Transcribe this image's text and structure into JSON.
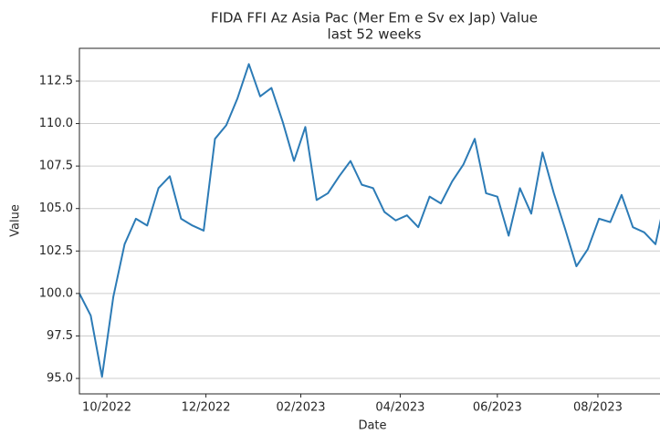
{
  "chart_data": {
    "type": "line",
    "title": "FIDA FFI Az Asia Pac (Mer Em e Sv ex Jap) Value",
    "subtitle": "last 52 weeks",
    "x_label": "Date",
    "y_label": "Value",
    "x": [
      0,
      1,
      2,
      3,
      4,
      5,
      6,
      7,
      8,
      9,
      10,
      11,
      12,
      13,
      14,
      15,
      16,
      17,
      18,
      19,
      20,
      21,
      22,
      23,
      24,
      25,
      26,
      27,
      28,
      29,
      30,
      31,
      32,
      33,
      34,
      35,
      36,
      37,
      38,
      39,
      40,
      41,
      42,
      43,
      44,
      45,
      46,
      47,
      48,
      49,
      50,
      51,
      52
    ],
    "series": [
      {
        "name": "Value",
        "color": "#2c7bb6",
        "values": [
          100.0,
          98.7,
          95.1,
          99.8,
          102.9,
          104.4,
          104.0,
          106.2,
          106.9,
          104.4,
          104.0,
          103.7,
          109.1,
          109.9,
          111.5,
          113.5,
          111.6,
          112.1,
          110.1,
          107.8,
          109.8,
          105.5,
          105.9,
          106.9,
          107.8,
          106.4,
          106.2,
          104.8,
          104.3,
          104.6,
          103.9,
          105.7,
          105.3,
          106.6,
          107.6,
          109.1,
          105.9,
          105.7,
          103.4,
          106.2,
          104.7,
          108.3,
          105.9,
          103.8,
          101.6,
          102.6,
          104.4,
          104.2,
          105.8,
          103.9,
          103.6,
          102.9,
          106.0
        ]
      }
    ],
    "xlim": [
      0,
      51.4
    ],
    "xticks": [
      {
        "value": 2.43,
        "label": "10/2022"
      },
      {
        "value": 11.2,
        "label": "12/2022"
      },
      {
        "value": 19.6,
        "label": "02/2023"
      },
      {
        "value": 28.4,
        "label": "04/2023"
      },
      {
        "value": 37.0,
        "label": "06/2023"
      },
      {
        "value": 45.9,
        "label": "08/2023"
      }
    ],
    "ylim": [
      94.09,
      114.43
    ],
    "yticks": [
      {
        "value": 95.0,
        "label": "95.0"
      },
      {
        "value": 97.5,
        "label": "97.5"
      },
      {
        "value": 100.0,
        "label": "100.0"
      },
      {
        "value": 102.5,
        "label": "102.5"
      },
      {
        "value": 105.0,
        "label": "105.0"
      },
      {
        "value": 107.5,
        "label": "107.5"
      },
      {
        "value": 110.0,
        "label": "110.0"
      },
      {
        "value": 112.5,
        "label": "112.5"
      }
    ],
    "grid": true
  }
}
